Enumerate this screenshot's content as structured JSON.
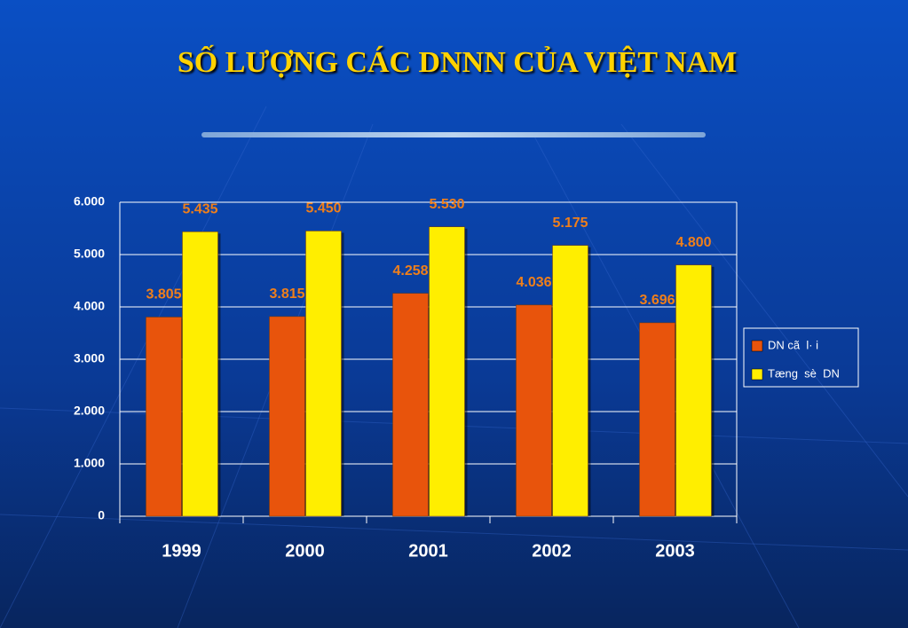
{
  "chart_data": {
    "type": "bar",
    "title": "SỐ LƯỢNG CÁC DNNN CỦA VIỆT NAM",
    "categories": [
      "1999",
      "2000",
      "2001",
      "2002",
      "2003"
    ],
    "series": [
      {
        "name": "DN cã  l· i",
        "color": "#e8540c",
        "values": [
          3805,
          3815,
          4258,
          4036,
          3696
        ],
        "value_labels": [
          "3.805",
          "3.815",
          "4.258",
          "4.036",
          "3.696"
        ]
      },
      {
        "name": "Tæng  sè  DN",
        "color": "#ffee00",
        "values": [
          5435,
          5450,
          5530,
          5175,
          4800
        ],
        "value_labels": [
          "5.435",
          "5.450",
          "5.530",
          "5.175",
          "4.800"
        ]
      }
    ],
    "ylim": [
      0,
      6000
    ],
    "yticks": [
      0,
      {
        "value": 1000,
        "label": "1.000"
      },
      {
        "value": 2000,
        "label": "2.000"
      },
      {
        "value": 3000,
        "label": "3.000"
      },
      {
        "value": 4000,
        "label": "4.000"
      },
      {
        "value": 5000,
        "label": "5.000"
      },
      {
        "value": 6000,
        "label": "6.000"
      }
    ],
    "grid": true,
    "legend": "right"
  }
}
